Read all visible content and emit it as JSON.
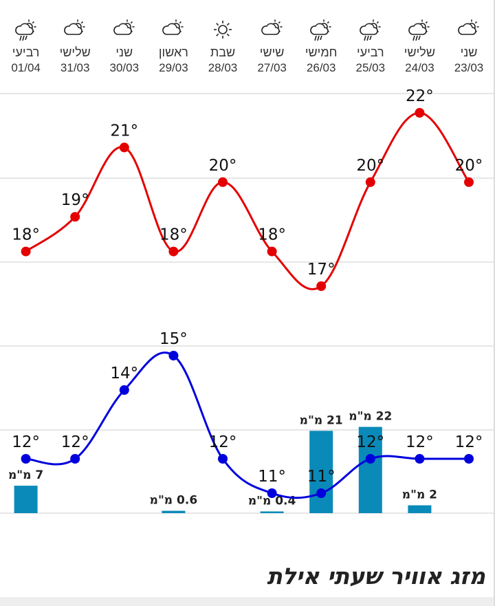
{
  "title": "מזג אוויר שעתי אילת",
  "colors": {
    "high": "#e30000",
    "low": "#0000dd",
    "precip": "#0a8ab8",
    "grid": "#dddddd"
  },
  "chart_data": {
    "type": "line",
    "title": "מזג אוויר שעתי אילת",
    "order": "right-to-left",
    "days": [
      {
        "name": "שני",
        "date": "23/03",
        "icon": "partly-cloudy-icon",
        "high": 20,
        "low": 12,
        "precip": null
      },
      {
        "name": "שלישי",
        "date": "24/03",
        "icon": "rain-cloud-sun-icon",
        "high": 22,
        "low": 12,
        "precip": 2,
        "precip_label": "2 מ\"מ"
      },
      {
        "name": "רביעי",
        "date": "25/03",
        "icon": "rain-cloud-sun-icon",
        "high": 20,
        "low": 12,
        "precip": 22,
        "precip_label": "22 מ\"מ"
      },
      {
        "name": "חמישי",
        "date": "26/03",
        "icon": "rain-cloud-sun-icon",
        "high": 17,
        "low": 11,
        "precip": 21,
        "precip_label": "21 מ\"מ"
      },
      {
        "name": "שישי",
        "date": "27/03",
        "icon": "partly-cloudy-icon",
        "high": 18,
        "low": 11,
        "precip": 0.4,
        "precip_label": "0.4 מ\"מ"
      },
      {
        "name": "שבת",
        "date": "28/03",
        "icon": "sun-icon",
        "high": 20,
        "low": 12,
        "precip": null
      },
      {
        "name": "ראשון",
        "date": "29/03",
        "icon": "partly-cloudy-icon",
        "high": 18,
        "low": 15,
        "precip": 0.6,
        "precip_label": "0.6 מ\"מ"
      },
      {
        "name": "שני",
        "date": "30/03",
        "icon": "partly-cloudy-icon",
        "high": 21,
        "low": 14,
        "precip": null
      },
      {
        "name": "שלישי",
        "date": "31/03",
        "icon": "partly-cloudy-icon",
        "high": 19,
        "low": 12,
        "precip": null
      },
      {
        "name": "רביעי",
        "date": "01/04",
        "icon": "rain-cloud-sun-icon",
        "high": 18,
        "low": 12,
        "precip": 7,
        "precip_label": "7 מ\"מ"
      }
    ],
    "unit_temp": "°",
    "grid": true
  }
}
